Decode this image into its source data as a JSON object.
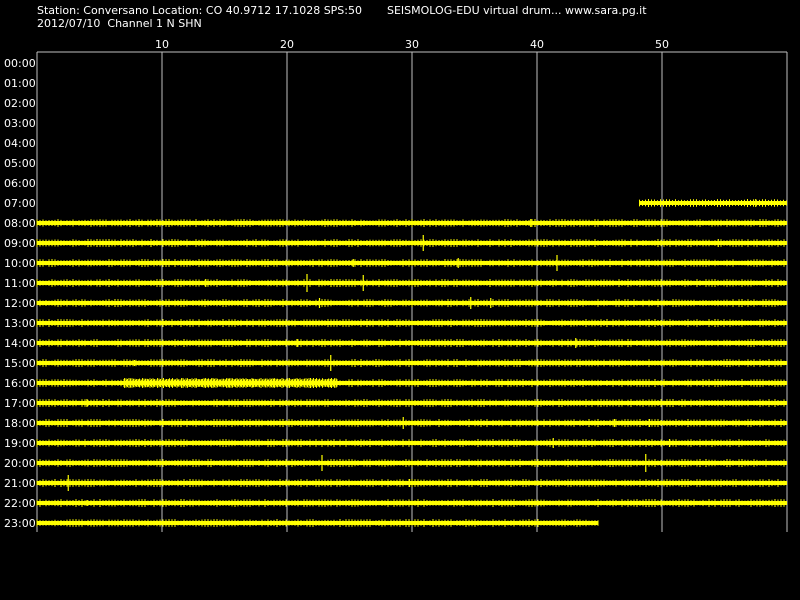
{
  "header": {
    "station_line": "Station: Conversano Location: CO 40.9712 17.1028 SPS:50",
    "app_line": "SEISMOLOG-EDU virtual drum... www.sara.pg.it",
    "date_line": "2012/07/10  Channel 1 N SHN"
  },
  "colors": {
    "background": "#000000",
    "trace": "#ffff00",
    "grid": "#c0c0c0",
    "text": "#ffffff"
  },
  "chart_data": {
    "type": "line",
    "title": "",
    "xlabel": "",
    "ylabel": "",
    "x_ticks": [
      "10",
      "20",
      "30",
      "40",
      "50"
    ],
    "x_tick_values": [
      10,
      20,
      30,
      40,
      50
    ],
    "xlim": [
      0,
      60
    ],
    "grid": true,
    "rows": [
      {
        "hour": "00:00",
        "start_min": null,
        "end_min": null
      },
      {
        "hour": "01:00",
        "start_min": null,
        "end_min": null
      },
      {
        "hour": "02:00",
        "start_min": null,
        "end_min": null
      },
      {
        "hour": "03:00",
        "start_min": null,
        "end_min": null
      },
      {
        "hour": "04:00",
        "start_min": null,
        "end_min": null
      },
      {
        "hour": "05:00",
        "start_min": null,
        "end_min": null
      },
      {
        "hour": "06:00",
        "start_min": null,
        "end_min": null
      },
      {
        "hour": "07:00",
        "start_min": 48.2,
        "end_min": 60,
        "events": [
          {
            "min": 57.5,
            "amp": 4
          }
        ]
      },
      {
        "hour": "08:00",
        "start_min": 0,
        "end_min": 60,
        "events": [
          {
            "min": 39.5,
            "amp": 4
          }
        ]
      },
      {
        "hour": "09:00",
        "start_min": 0,
        "end_min": 60,
        "events": [
          {
            "min": 30.9,
            "amp": 8
          },
          {
            "min": 54.5,
            "amp": 4
          }
        ]
      },
      {
        "hour": "10:00",
        "start_min": 0,
        "end_min": 60,
        "events": [
          {
            "min": 25.3,
            "amp": 4
          },
          {
            "min": 33.7,
            "amp": 5
          },
          {
            "min": 41.6,
            "amp": 8
          }
        ]
      },
      {
        "hour": "11:00",
        "start_min": 0,
        "end_min": 60,
        "events": [
          {
            "min": 21.6,
            "amp": 9
          },
          {
            "min": 26.1,
            "amp": 8
          },
          {
            "min": 13.5,
            "amp": 4
          }
        ]
      },
      {
        "hour": "12:00",
        "start_min": 0,
        "end_min": 60,
        "events": [
          {
            "min": 34.7,
            "amp": 6
          },
          {
            "min": 36.3,
            "amp": 5
          },
          {
            "min": 22.6,
            "amp": 5
          }
        ]
      },
      {
        "hour": "13:00",
        "start_min": 0,
        "end_min": 60,
        "events": [
          {
            "min": 6.0,
            "amp": 3
          }
        ]
      },
      {
        "hour": "14:00",
        "start_min": 0,
        "end_min": 60,
        "events": [
          {
            "min": 43.1,
            "amp": 5
          },
          {
            "min": 20.8,
            "amp": 4
          }
        ]
      },
      {
        "hour": "15:00",
        "start_min": 0,
        "end_min": 60,
        "events": [
          {
            "min": 23.5,
            "amp": 8
          },
          {
            "min": 7.8,
            "amp": 3
          }
        ]
      },
      {
        "hour": "16:00",
        "start_min": 0,
        "end_min": 60,
        "events": [
          {
            "min": 23.5,
            "amp": 4
          }
        ],
        "burst": [
          7,
          24
        ]
      },
      {
        "hour": "17:00",
        "start_min": 0,
        "end_min": 60,
        "events": [
          {
            "min": 4.0,
            "amp": 4
          }
        ]
      },
      {
        "hour": "18:00",
        "start_min": 0,
        "end_min": 60,
        "events": [
          {
            "min": 29.3,
            "amp": 6
          },
          {
            "min": 46.2,
            "amp": 4
          },
          {
            "min": 49.0,
            "amp": 4
          }
        ]
      },
      {
        "hour": "19:00",
        "start_min": 0,
        "end_min": 60,
        "events": [
          {
            "min": 41.3,
            "amp": 5
          },
          {
            "min": 50.6,
            "amp": 4
          }
        ]
      },
      {
        "hour": "20:00",
        "start_min": 0,
        "end_min": 60,
        "events": [
          {
            "min": 22.8,
            "amp": 8
          },
          {
            "min": 48.7,
            "amp": 9
          }
        ]
      },
      {
        "hour": "21:00",
        "start_min": 0,
        "end_min": 60,
        "events": [
          {
            "min": 2.5,
            "amp": 8
          },
          {
            "min": 29.8,
            "amp": 4
          }
        ]
      },
      {
        "hour": "22:00",
        "start_min": 0,
        "end_min": 60,
        "events": [
          {
            "min": 4.0,
            "amp": 3
          }
        ]
      },
      {
        "hour": "23:00",
        "start_min": 0,
        "end_min": 44.9,
        "events": []
      }
    ]
  }
}
